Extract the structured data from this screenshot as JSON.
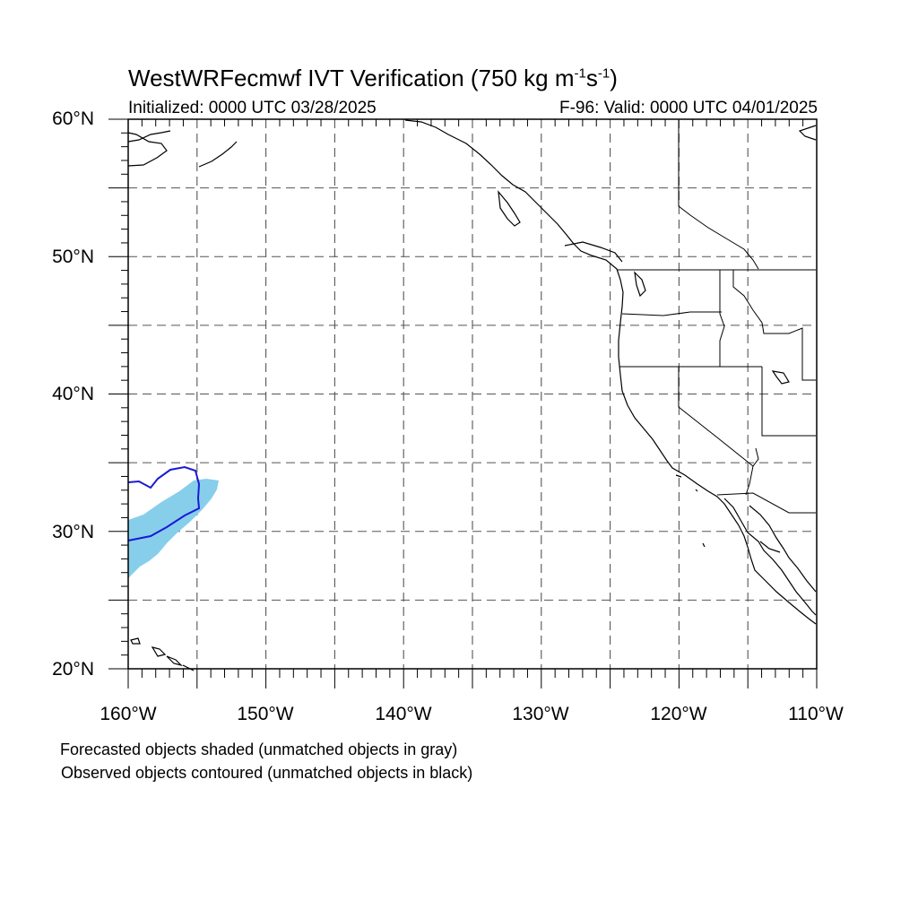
{
  "title": {
    "main": "WestWRFecmwf IVT Verification (750 kg m",
    "sup1": "-1",
    "mid": "s",
    "sup2": "-1",
    "end": ")"
  },
  "initialized": "Initialized: 0000 UTC 03/28/2025",
  "valid": "F-96: Valid: 0000 UTC 04/01/2025",
  "lat_labels": [
    "60°N",
    "50°N",
    "40°N",
    "30°N",
    "20°N"
  ],
  "lon_labels": [
    "160°W",
    "150°W",
    "140°W",
    "130°W",
    "120°W",
    "110°W"
  ],
  "legend": {
    "forecast_note": "Forecasted objects shaded (unmatched objects in gray)",
    "observed_note": "Observed objects contoured (unmatched objects in black)"
  },
  "map": {
    "lon_range": [
      -160,
      -110
    ],
    "lat_range": [
      20,
      60
    ],
    "grid_spacing_deg": 5,
    "minor_tick_deg": 1,
    "grid_style": "dashed gray",
    "forecast_object_color": "#87CEEB",
    "observed_object_color": "#1a1ad6",
    "coastline_color": "#000000"
  }
}
